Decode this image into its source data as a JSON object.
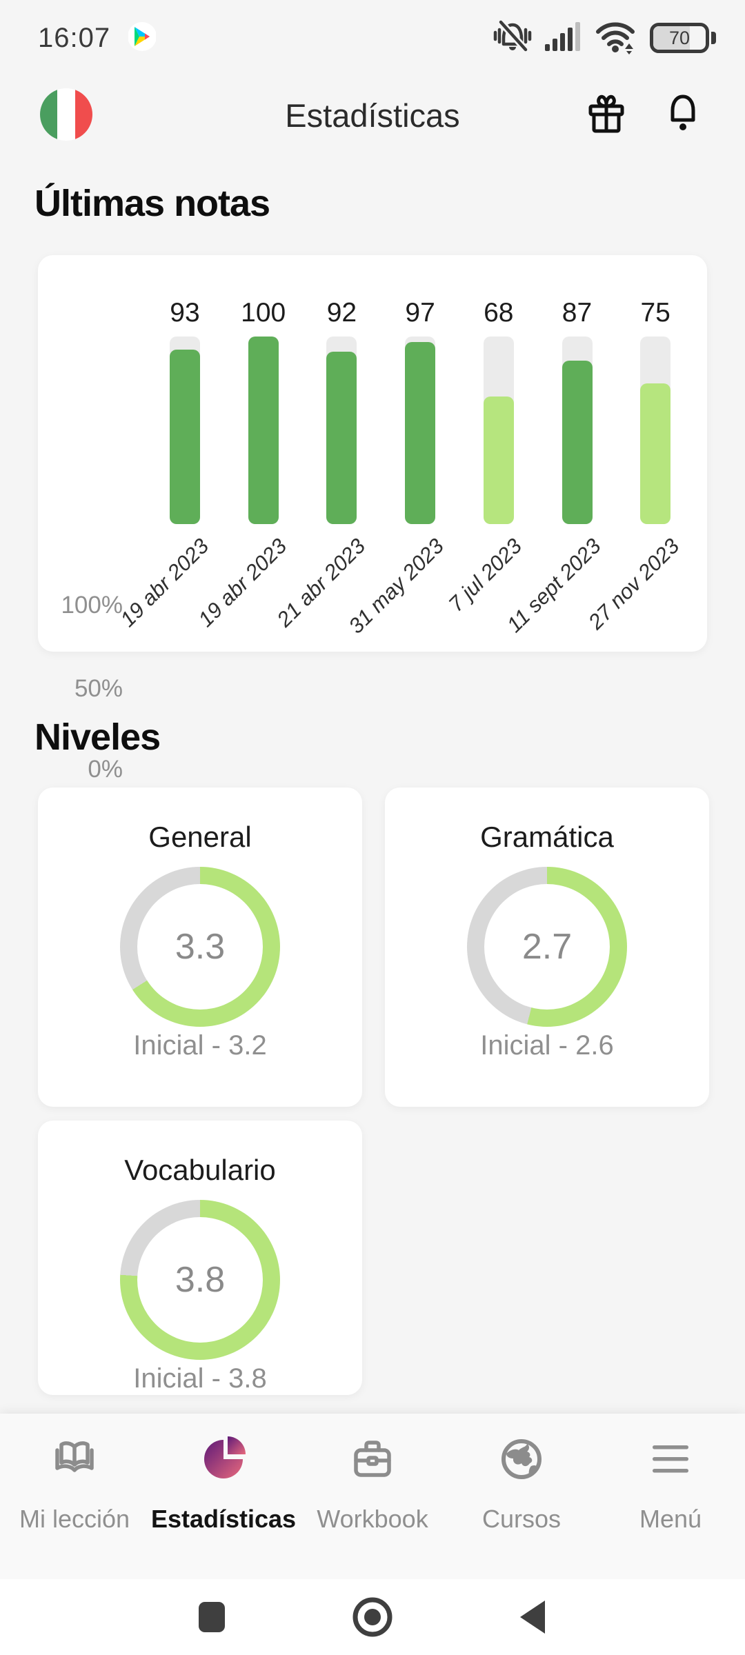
{
  "status_bar": {
    "time": "16:07",
    "battery_level": "70",
    "icons": [
      "play-store-icon",
      "ringer-muted-icon",
      "signal-icon",
      "wifi-icon",
      "battery-indicator"
    ]
  },
  "header": {
    "title": "Estadísticas",
    "flag": "italy-flag",
    "flag_colors": [
      "#4a9e5f",
      "#ffffff",
      "#f04d4d"
    ],
    "icons": [
      "gift-icon",
      "bell-icon"
    ]
  },
  "sections": {
    "grades_heading": "Últimas notas",
    "levels_heading": "Niveles"
  },
  "chart_data": [
    {
      "type": "bar",
      "title": "Últimas notas",
      "categories": [
        "19 abr 2023",
        "19 abr 2023",
        "21 abr 2023",
        "31 may 2023",
        "7 jul 2023",
        "11 sept 2023",
        "27 nov 2023"
      ],
      "values": [
        93,
        100,
        92,
        97,
        68,
        87,
        75
      ],
      "yticks": [
        "0%",
        "50%",
        "100%"
      ],
      "ylim": [
        0,
        100
      ],
      "grid": false,
      "legend": "none",
      "colors": {
        "high": "#5fae58",
        "low": "#b6e57e",
        "track": "#ebebeb"
      },
      "color_threshold": 80
    },
    {
      "type": "donut",
      "title": "General",
      "value": 3.3,
      "max": 5,
      "caption": "Inicial - 3.2",
      "colors": {
        "progress": "#b5e47a",
        "rest": "#d8d8d8"
      }
    },
    {
      "type": "donut",
      "title": "Gramática",
      "value": 2.7,
      "max": 5,
      "caption": "Inicial - 2.6",
      "colors": {
        "progress": "#b5e47a",
        "rest": "#d8d8d8"
      }
    },
    {
      "type": "donut",
      "title": "Vocabulario",
      "value": 3.8,
      "max": 5,
      "caption": "Inicial - 3.8",
      "colors": {
        "progress": "#b5e47a",
        "rest": "#d8d8d8"
      }
    }
  ],
  "bottom_nav": {
    "items": [
      {
        "label": "Mi lección",
        "icon": "book-icon",
        "active": false
      },
      {
        "label": "Estadísticas",
        "icon": "pie-chart-icon",
        "active": true
      },
      {
        "label": "Workbook",
        "icon": "briefcase-icon",
        "active": false
      },
      {
        "label": "Cursos",
        "icon": "globe-icon",
        "active": false
      },
      {
        "label": "Menú",
        "icon": "menu-icon",
        "active": false
      }
    ],
    "active_color": "#141414",
    "inactive_color": "#8f8f8f",
    "active_gradient": [
      "#5e1a78",
      "#e8697d"
    ]
  },
  "android_nav": {
    "icons": [
      "recents-square-icon",
      "home-circle-icon",
      "back-triangle-icon"
    ]
  }
}
